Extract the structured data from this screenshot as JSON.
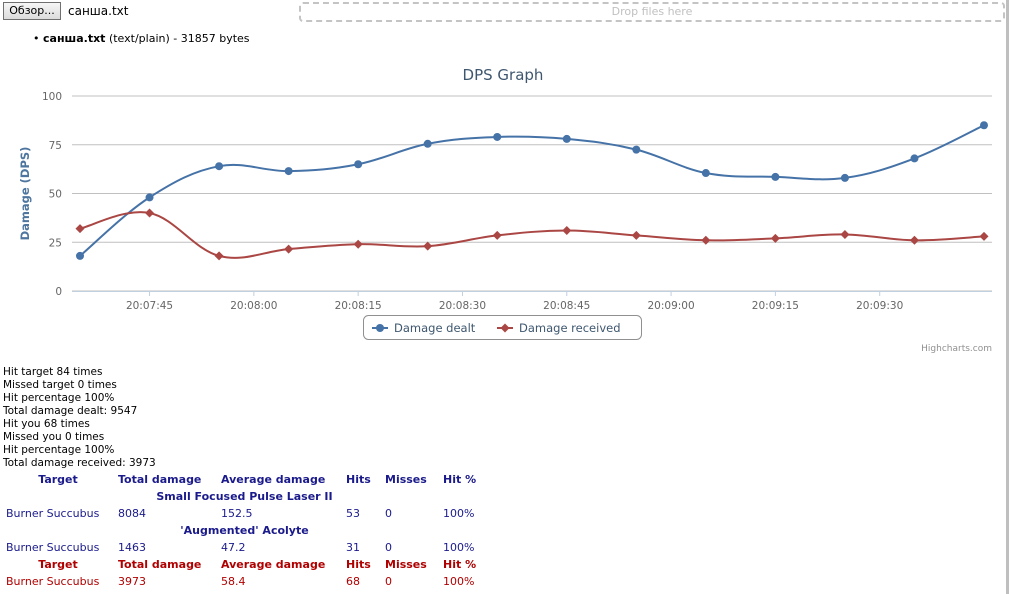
{
  "topbar": {
    "browse_label": "Обзор...",
    "file_name": "санша.txt",
    "drop_label": "Drop files here"
  },
  "file_info": {
    "name": "санша.txt",
    "details": "(text/plain) - 31857 bytes"
  },
  "chart_data": {
    "type": "line",
    "title": "DPS Graph",
    "ylabel": "Damage (DPS)",
    "xlabel": "",
    "ylim": [
      0,
      100
    ],
    "yticks": [
      0,
      25,
      50,
      75,
      100
    ],
    "x": [
      "20:07:35",
      "20:07:45",
      "20:07:55",
      "20:08:05",
      "20:08:15",
      "20:08:25",
      "20:08:35",
      "20:08:45",
      "20:08:55",
      "20:09:05",
      "20:09:15",
      "20:09:25",
      "20:09:35",
      "20:09:45"
    ],
    "xtick_labels": [
      "20:07:45",
      "20:08:00",
      "20:08:15",
      "20:08:30",
      "20:08:45",
      "20:09:00",
      "20:09:15",
      "20:09:30"
    ],
    "series": [
      {
        "name": "Damage dealt",
        "color": "#4572A7",
        "marker": "circle",
        "values": [
          18,
          48,
          64,
          61.5,
          65,
          75.5,
          79,
          78,
          72.5,
          60.5,
          58.5,
          58,
          68,
          85
        ]
      },
      {
        "name": "Damage received",
        "color": "#AA4643",
        "marker": "diamond",
        "values": [
          32,
          40,
          18,
          21.5,
          24,
          23,
          28.5,
          31,
          28.5,
          26,
          27,
          29,
          26,
          28
        ]
      }
    ],
    "grid": "horizontal",
    "legend": "bottom-center",
    "credits": "Highcharts.com"
  },
  "stats": [
    "Hit target 84 times",
    "Missed target 0 times",
    "Hit percentage 100%",
    "Total damage dealt: 9547",
    "Hit you 68 times",
    "Missed you 0 times",
    "Hit percentage 100%",
    "Total damage received: 3973"
  ],
  "dealt_table": {
    "headers": [
      "Target",
      "Total damage",
      "Average damage",
      "Hits",
      "Misses",
      "Hit %"
    ],
    "groups": [
      {
        "weapon": "Small Focused Pulse Laser II",
        "row": [
          "Burner Succubus",
          "8084",
          "152.5",
          "53",
          "0",
          "100%"
        ]
      },
      {
        "weapon": "'Augmented' Acolyte",
        "row": [
          "Burner Succubus",
          "1463",
          "47.2",
          "31",
          "0",
          "100%"
        ]
      }
    ]
  },
  "received_table": {
    "headers": [
      "Target",
      "Total damage",
      "Average damage",
      "Hits",
      "Misses",
      "Hit %"
    ],
    "row": [
      "Burner Succubus",
      "3973",
      "58.4",
      "68",
      "0",
      "100%"
    ]
  },
  "colors": {
    "table_blue": "#1a1a8c",
    "table_red": "#b00000",
    "title": "#3E576F",
    "grid": "#C0C0C0"
  }
}
